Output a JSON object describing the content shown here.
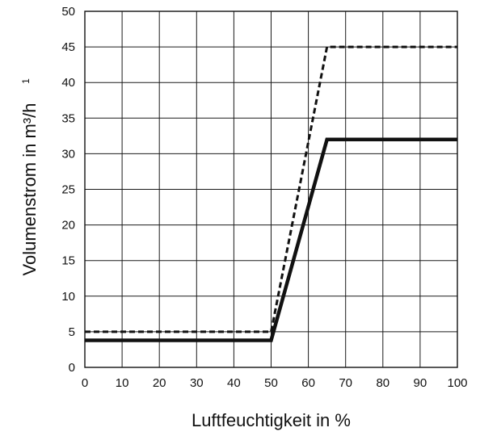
{
  "chart_data": {
    "type": "line",
    "xlabel": "Luftfeuchtigkeit in %",
    "ylabel": "Volumenstrom in m³/h",
    "ylabel_superscript": "1",
    "xlim": [
      0,
      100
    ],
    "ylim": [
      0,
      50
    ],
    "x_ticks": [
      0,
      10,
      20,
      30,
      40,
      50,
      60,
      70,
      80,
      90,
      100
    ],
    "y_ticks": [
      0,
      5,
      10,
      15,
      20,
      25,
      30,
      35,
      40,
      45,
      50
    ],
    "grid": true,
    "legend": "none",
    "series": [
      {
        "style": "solid",
        "color": "#111111",
        "x": [
          0,
          50,
          65,
          100
        ],
        "y": [
          3.8,
          3.8,
          32,
          32
        ]
      },
      {
        "style": "dashed",
        "color": "#111111",
        "x": [
          0,
          50,
          65,
          100
        ],
        "y": [
          5,
          5,
          45,
          45
        ]
      }
    ]
  }
}
